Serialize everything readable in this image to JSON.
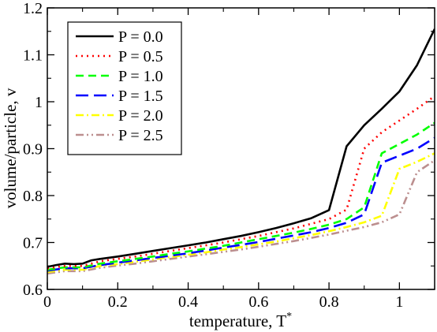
{
  "chart_data": {
    "type": "line",
    "xlabel": "temperature, T",
    "xlabel_superscript": "*",
    "ylabel": "volume/particle, v",
    "xlim": [
      0,
      1.1
    ],
    "ylim": [
      0.6,
      1.2
    ],
    "xticks": [
      0,
      0.2,
      0.4,
      0.6,
      0.8,
      1
    ],
    "xtick_labels": [
      "0",
      "0.2",
      "0.4",
      "0.6",
      "0.8",
      "1"
    ],
    "yticks": [
      0.6,
      0.7,
      0.8,
      0.9,
      1.0,
      1.1,
      1.2
    ],
    "ytick_labels": [
      "0.6",
      "0.7",
      "0.8",
      "0.9",
      "1",
      "1.1",
      "1.2"
    ],
    "grid": false,
    "legend_position": "top-left",
    "series": [
      {
        "name": "P = 0.0",
        "color": "#000000",
        "dash": "solid",
        "x": [
          0,
          0.025,
          0.05,
          0.075,
          0.1,
          0.125,
          0.15,
          0.2,
          0.25,
          0.3,
          0.35,
          0.4,
          0.45,
          0.5,
          0.55,
          0.6,
          0.65,
          0.7,
          0.75,
          0.8,
          0.85,
          0.9,
          0.95,
          1.0,
          1.05,
          1.1
        ],
        "y": [
          0.648,
          0.652,
          0.655,
          0.654,
          0.655,
          0.662,
          0.665,
          0.67,
          0.676,
          0.682,
          0.688,
          0.694,
          0.7,
          0.707,
          0.714,
          0.722,
          0.731,
          0.741,
          0.752,
          0.769,
          0.905,
          0.95,
          0.985,
          1.022,
          1.078,
          1.155
        ]
      },
      {
        "name": "P = 0.5",
        "color": "#ff0000",
        "dash": "dotted",
        "x": [
          0,
          0.05,
          0.1,
          0.15,
          0.2,
          0.25,
          0.3,
          0.35,
          0.4,
          0.45,
          0.5,
          0.55,
          0.6,
          0.65,
          0.7,
          0.75,
          0.8,
          0.85,
          0.9,
          0.95,
          1.0,
          1.05,
          1.1
        ],
        "y": [
          0.645,
          0.65,
          0.65,
          0.66,
          0.665,
          0.67,
          0.676,
          0.682,
          0.688,
          0.694,
          0.7,
          0.707,
          0.714,
          0.722,
          0.73,
          0.74,
          0.75,
          0.77,
          0.9,
          0.935,
          0.96,
          0.985,
          1.012
        ]
      },
      {
        "name": "P = 1.0",
        "color": "#00ff00",
        "dash": "dashed",
        "x": [
          0,
          0.05,
          0.1,
          0.15,
          0.2,
          0.25,
          0.3,
          0.35,
          0.4,
          0.45,
          0.5,
          0.55,
          0.6,
          0.65,
          0.7,
          0.75,
          0.8,
          0.85,
          0.9,
          0.95,
          1.0,
          1.05,
          1.1
        ],
        "y": [
          0.642,
          0.647,
          0.647,
          0.655,
          0.66,
          0.665,
          0.67,
          0.676,
          0.681,
          0.687,
          0.693,
          0.7,
          0.707,
          0.714,
          0.721,
          0.729,
          0.738,
          0.75,
          0.775,
          0.89,
          0.91,
          0.93,
          0.955
        ]
      },
      {
        "name": "P = 1.5",
        "color": "#0000ff",
        "dash": "longdash",
        "x": [
          0,
          0.05,
          0.1,
          0.15,
          0.2,
          0.25,
          0.3,
          0.35,
          0.4,
          0.45,
          0.5,
          0.55,
          0.6,
          0.65,
          0.7,
          0.75,
          0.8,
          0.85,
          0.9,
          0.95,
          1.0,
          1.05,
          1.1
        ],
        "y": [
          0.64,
          0.645,
          0.645,
          0.652,
          0.657,
          0.662,
          0.667,
          0.672,
          0.677,
          0.683,
          0.689,
          0.695,
          0.701,
          0.708,
          0.715,
          0.722,
          0.731,
          0.742,
          0.76,
          0.87,
          0.885,
          0.9,
          0.923
        ]
      },
      {
        "name": "P = 2.0",
        "color": "#ffff00",
        "dash": "dashdot",
        "x": [
          0,
          0.05,
          0.1,
          0.15,
          0.2,
          0.25,
          0.3,
          0.35,
          0.4,
          0.45,
          0.5,
          0.55,
          0.6,
          0.65,
          0.7,
          0.75,
          0.8,
          0.85,
          0.9,
          0.95,
          1.0,
          1.05,
          1.1
        ],
        "y": [
          0.637,
          0.642,
          0.642,
          0.65,
          0.654,
          0.659,
          0.664,
          0.669,
          0.674,
          0.679,
          0.685,
          0.69,
          0.696,
          0.702,
          0.709,
          0.716,
          0.724,
          0.733,
          0.743,
          0.757,
          0.857,
          0.872,
          0.89
        ]
      },
      {
        "name": "P = 2.5",
        "color": "#bc8f8f",
        "dash": "dashdotdot",
        "x": [
          0,
          0.05,
          0.1,
          0.15,
          0.2,
          0.25,
          0.3,
          0.35,
          0.4,
          0.45,
          0.5,
          0.55,
          0.6,
          0.65,
          0.7,
          0.75,
          0.8,
          0.85,
          0.9,
          0.95,
          1.0,
          1.05,
          1.1
        ],
        "y": [
          0.634,
          0.639,
          0.639,
          0.646,
          0.651,
          0.655,
          0.66,
          0.665,
          0.67,
          0.675,
          0.68,
          0.685,
          0.691,
          0.697,
          0.703,
          0.71,
          0.717,
          0.725,
          0.733,
          0.743,
          0.76,
          0.85,
          0.875
        ]
      }
    ]
  }
}
